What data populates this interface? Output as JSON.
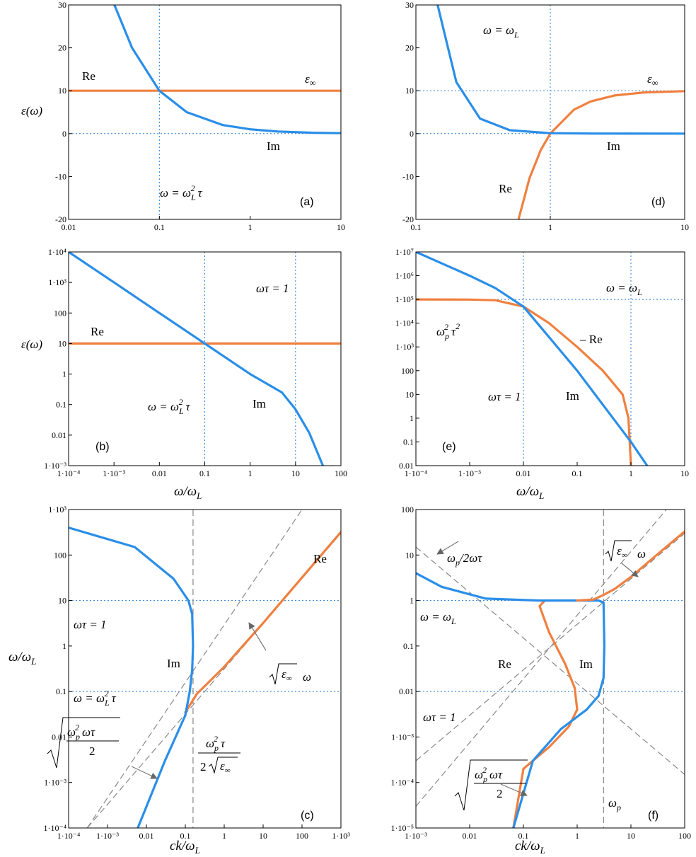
{
  "colors": {
    "re": "#f08040",
    "im": "#2a8ee8",
    "ref": "#2a7fd6",
    "guide": "#888888"
  },
  "chart_data": [
    {
      "panel": "(a)",
      "type": "line",
      "xscale": "log",
      "yscale": "linear",
      "xlim": [
        0.01,
        10
      ],
      "ylim": [
        -20,
        30
      ],
      "xticks": [
        "0.01",
        "0.1",
        "1",
        "10"
      ],
      "yticks": [
        "-20",
        "-10",
        "0",
        "10",
        "20",
        "30"
      ],
      "ylabel": "ε(ω)",
      "series": [
        {
          "name": "Re",
          "x": [
            0.01,
            10
          ],
          "y": [
            10,
            10
          ]
        },
        {
          "name": "Im",
          "x": [
            0.032,
            0.05,
            0.1,
            0.2,
            0.5,
            1,
            2,
            5,
            10
          ],
          "y": [
            30,
            20,
            10,
            5,
            2,
            1,
            0.5,
            0.2,
            0.1
          ]
        }
      ],
      "reflines": {
        "v": [
          0.1
        ],
        "h": [
          10,
          0
        ]
      },
      "annotations": [
        "Re",
        "Im",
        "ε∞",
        "ω = ω_L² τ"
      ]
    },
    {
      "panel": "(d)",
      "type": "line",
      "xscale": "log",
      "yscale": "linear",
      "xlim": [
        0.1,
        10
      ],
      "ylim": [
        -20,
        30
      ],
      "xticks": [
        "0.1",
        "1",
        "10"
      ],
      "yticks": [
        "-20",
        "-10",
        "0",
        "10",
        "20",
        "30"
      ],
      "series": [
        {
          "name": "Re",
          "x": [
            0.58,
            0.7,
            0.85,
            1,
            1.5,
            2,
            3,
            5,
            10
          ],
          "y": [
            -20,
            -10.4,
            -3.8,
            0,
            5.6,
            7.5,
            8.9,
            9.6,
            9.9
          ]
        },
        {
          "name": "Im",
          "x": [
            0.145,
            0.2,
            0.3,
            0.5,
            1,
            2,
            10
          ],
          "y": [
            30,
            12,
            3.5,
            0.8,
            0.1,
            0.01,
            0
          ]
        }
      ],
      "reflines": {
        "v": [
          1
        ],
        "h": [
          10,
          0
        ]
      },
      "annotations": [
        "ω = ω_L",
        "ε∞",
        "Im",
        "Re"
      ]
    },
    {
      "panel": "(b)",
      "type": "line",
      "xscale": "log",
      "yscale": "log",
      "xlim": [
        0.0001,
        100
      ],
      "ylim": [
        0.001,
        10000
      ],
      "xticks": [
        "1·10⁻⁴",
        "1·10⁻³",
        "0.01",
        "0.1",
        "1",
        "10",
        "100"
      ],
      "yticks": [
        "1·10⁻³",
        "0.01",
        "0.1",
        "1",
        "10",
        "100",
        "1·10³",
        "1·10⁴"
      ],
      "xlabel": "ω/ω_L",
      "ylabel": "ε(ω)",
      "series": [
        {
          "name": "Re",
          "x": [
            0.0001,
            100
          ],
          "y": [
            10,
            10
          ]
        },
        {
          "name": "Im",
          "x": [
            0.0001,
            0.001,
            0.01,
            0.1,
            1,
            5,
            10,
            20,
            40
          ],
          "y": [
            10000,
            1000,
            100,
            10,
            1,
            0.25,
            0.07,
            0.012,
            0.001
          ]
        }
      ],
      "reflines": {
        "v": [
          0.1,
          10
        ]
      },
      "annotations": [
        "Re",
        "Im",
        "ωτ = 1",
        "ω = ω_L² τ"
      ]
    },
    {
      "panel": "(e)",
      "type": "line",
      "xscale": "log",
      "yscale": "log",
      "xlim": [
        0.0001,
        10
      ],
      "ylim": [
        0.01,
        10000000
      ],
      "xticks": [
        "1·10⁻⁴",
        "1·10⁻³",
        "0.01",
        "0.1",
        "1",
        "10"
      ],
      "yticks": [
        "0.01",
        "0.1",
        "1",
        "10",
        "100",
        "1·10³",
        "1·10⁴",
        "1·10⁵",
        "1·10⁶",
        "1·10⁷"
      ],
      "xlabel": "ω/ω_L",
      "series": [
        {
          "name": "−Re",
          "x": [
            0.0001,
            0.001,
            0.003,
            0.01,
            0.03,
            0.1,
            0.3,
            0.7,
            0.9,
            0.95,
            1
          ],
          "y": [
            100000,
            99000,
            92000,
            50000,
            10000,
            1000,
            100,
            10,
            1,
            0.1,
            0.01
          ]
        },
        {
          "name": "Im",
          "x": [
            0.0001,
            0.001,
            0.003,
            0.01,
            0.1,
            1,
            2
          ],
          "y": [
            10000000,
            1000000,
            300000,
            50000,
            100,
            0.1,
            0.01
          ]
        }
      ],
      "reflines": {
        "v": [
          0.01,
          1
        ],
        "h": [
          100000
        ]
      },
      "annotations": [
        "ω = ω_L",
        "ω_p² τ²",
        "−Re",
        "ωτ = 1",
        "Im"
      ]
    },
    {
      "panel": "(c)",
      "type": "line",
      "xscale": "log",
      "yscale": "log",
      "xlim": [
        0.0001,
        1000
      ],
      "ylim": [
        0.0001,
        1000
      ],
      "xticks": [
        "1·10⁻⁴",
        "1·10⁻³",
        "0.01",
        "0.1",
        "1",
        "10",
        "100",
        "1·10³"
      ],
      "yticks": [
        "1·10⁻⁴",
        "1·10⁻³",
        "0.01",
        "0.1",
        "1",
        "10",
        "100",
        "1·10³"
      ],
      "xlabel": "ck/ω_L",
      "ylabel": "ω/ω_L",
      "series": [
        {
          "name": "Re",
          "x": [
            0.1,
            0.2,
            0.4,
            1,
            10,
            100,
            1000
          ],
          "y": [
            0.035,
            0.09,
            0.16,
            0.35,
            3.2,
            32,
            320
          ]
        },
        {
          "name": "Im",
          "x": [
            0.006,
            0.03,
            0.1,
            0.13,
            0.15,
            0.158,
            0.15,
            0.12,
            0.05,
            0.005,
            0.0001
          ],
          "y": [
            0.0001,
            0.003,
            0.03,
            0.1,
            0.3,
            1,
            5,
            10,
            30,
            150,
            400
          ]
        }
      ],
      "reflines": {
        "h": [
          10,
          0.1
        ]
      },
      "guides": [
        {
          "kind": "vertical",
          "x": 0.158
        },
        {
          "kind": "line",
          "x": [
            0.0003,
            100
          ],
          "y": [
            0.0001,
            1000
          ]
        },
        {
          "kind": "line",
          "x": [
            0.0003,
            1000
          ],
          "y": [
            0.0001,
            300
          ]
        }
      ],
      "annotations": [
        "Re",
        "Im",
        "ωτ = 1",
        "ω = ω_L² τ",
        "√ε∞ ω",
        "√(ω_p² ωτ / 2)",
        "ω_p² τ / 2√ε∞"
      ]
    },
    {
      "panel": "(f)",
      "type": "line",
      "xscale": "log",
      "yscale": "log",
      "xlim": [
        0.001,
        100
      ],
      "ylim": [
        1e-05,
        100
      ],
      "xticks": [
        "1·10⁻³",
        "0.01",
        "0.1",
        "1",
        "10",
        "100"
      ],
      "yticks": [
        "1·10⁻⁵",
        "1·10⁻⁴",
        "1·10⁻³",
        "0.01",
        "0.1",
        "1",
        "10",
        "100"
      ],
      "xlabel": "ck/ω_L",
      "series": [
        {
          "name": "Re",
          "x": [
            0.25,
            0.2,
            0.3,
            0.6,
            0.9,
            1.0,
            0.7,
            0.3,
            0.1,
            0.065
          ],
          "y": [
            1,
            0.75,
            0.2,
            0.04,
            0.012,
            0.004,
            0.0017,
            0.0006,
            0.0002,
            1e-05
          ]
        },
        {
          "name": "Im",
          "x": [
            0.001,
            0.003,
            0.02,
            0.2,
            1,
            2.5,
            3.1,
            3.2,
            3.1,
            2.5,
            1.5,
            0.5,
            0.15,
            0.065
          ],
          "y": [
            4,
            2,
            1.1,
            1,
            1,
            1,
            0.9,
            0.1,
            0.02,
            0.008,
            0.004,
            0.0015,
            0.0003,
            1e-05
          ]
        },
        {
          "name": "Re-upper",
          "x": [
            1,
            2,
            3,
            5,
            10,
            30,
            100
          ],
          "y": [
            1,
            1.05,
            1.3,
            1.8,
            3.3,
            10,
            33
          ]
        }
      ],
      "reflines": {
        "h": [
          1,
          0.01
        ]
      },
      "guides": [
        {
          "kind": "vertical",
          "x": 3.1
        },
        {
          "kind": "line",
          "x": [
            0.001,
            100
          ],
          "y": [
            15,
            0.00015
          ]
        },
        {
          "kind": "line",
          "x": [
            0.001,
            100
          ],
          "y": [
            0.0003,
            30
          ]
        },
        {
          "kind": "line",
          "x": [
            0.001,
            100
          ],
          "y": [
            3e-05,
            300
          ]
        }
      ],
      "annotations": [
        "ω_p/2ωτ",
        "√ε∞ ω",
        "ω = ω_L",
        "Re",
        "Im",
        "ωτ = 1",
        "√(ω_p² ωτ / 2)",
        "ω_p"
      ]
    }
  ],
  "panel_labels": {
    "a": "(a)",
    "b": "(b)",
    "c": "(c)",
    "d": "(d)",
    "e": "(e)",
    "f": "(f)"
  },
  "axis_labels": {
    "eps": "ε(ω)",
    "omega_ratio": "ω/ω_L",
    "ck_ratio": "ck/ω_L"
  },
  "labels": {
    "re": "Re",
    "im": "Im",
    "neg_re": "– Re",
    "eps_inf": "ε∞",
    "omega_eq_wL": "ω = ω",
    "omega_tau_1": "ωτ = 1",
    "omega_eq_wL2tau": "ω = ω",
    "wp2tau2": "ω",
    "wp_over_2wt": "ω",
    "wp": "ω",
    "sqrt_eps_w": "ω"
  }
}
